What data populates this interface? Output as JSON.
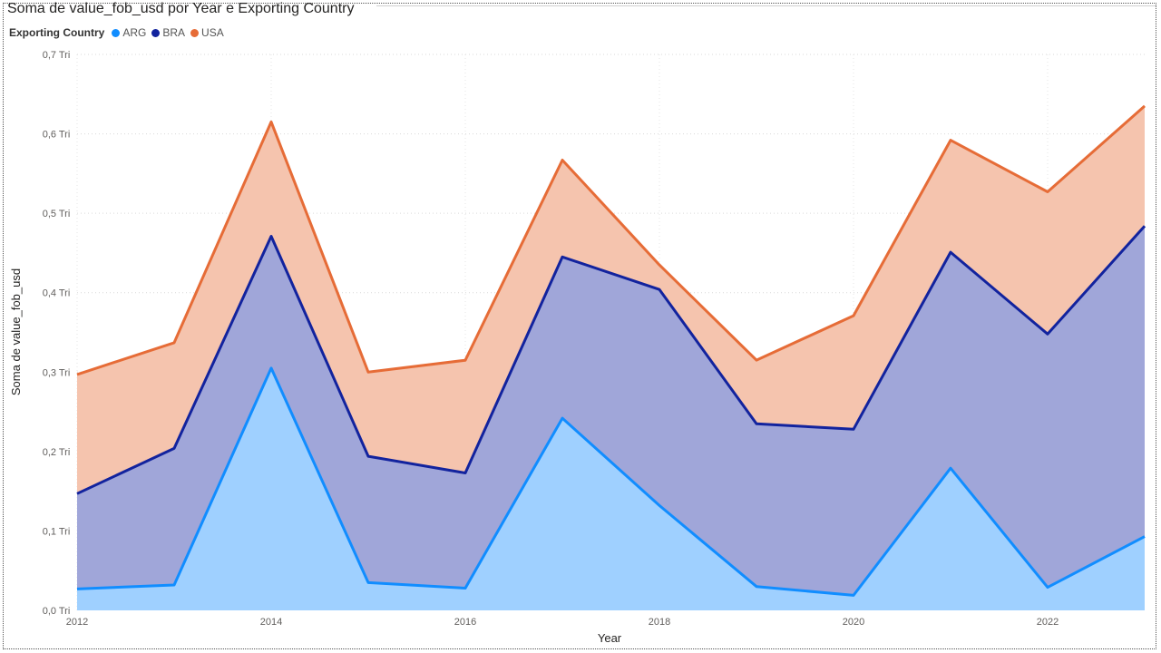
{
  "chart_data": {
    "type": "area",
    "stacked": true,
    "title": "Soma de value_fob_usd por Year e Exporting Country",
    "xlabel": "Year",
    "ylabel": "Soma de value_fob_usd",
    "x": [
      2012,
      2013,
      2014,
      2015,
      2016,
      2017,
      2018,
      2019,
      2020,
      2021,
      2022,
      2023
    ],
    "x_tick_labels": [
      "2012",
      "2014",
      "2016",
      "2018",
      "2020",
      "2022"
    ],
    "ylim": [
      0,
      0.7
    ],
    "y_ticks": [
      0,
      0.1,
      0.2,
      0.3,
      0.4,
      0.5,
      0.6,
      0.7
    ],
    "y_tick_labels": [
      "0,0 Tri",
      "0,1 Tri",
      "0,2 Tri",
      "0,3 Tri",
      "0,4 Tri",
      "0,5 Tri",
      "0,6 Tri",
      "0,7 Tri"
    ],
    "y_unit": "Tri",
    "grid": true,
    "legend": {
      "title": "Exporting Country",
      "position": "top-left"
    },
    "series": [
      {
        "name": "ARG",
        "color": "#118dff",
        "fill": "#9fd0ff",
        "values": [
          0.027,
          0.032,
          0.305,
          0.035,
          0.028,
          0.242,
          0.132,
          0.03,
          0.019,
          0.179,
          0.029,
          0.093
        ]
      },
      {
        "name": "BRA",
        "color": "#12239e",
        "fill": "#a0a6d9",
        "values": [
          0.12,
          0.172,
          0.166,
          0.159,
          0.145,
          0.203,
          0.272,
          0.205,
          0.209,
          0.272,
          0.319,
          0.391
        ]
      },
      {
        "name": "USA",
        "color": "#e66c37",
        "fill": "#f5c4ae",
        "values": [
          0.15,
          0.133,
          0.144,
          0.106,
          0.142,
          0.122,
          0.031,
          0.08,
          0.143,
          0.141,
          0.179,
          0.151
        ]
      }
    ]
  }
}
